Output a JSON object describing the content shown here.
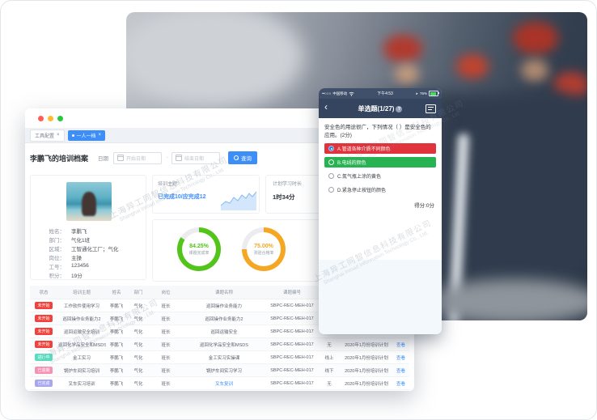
{
  "watermark": {
    "line1": "上海异工同智信息科技有限公司",
    "line2": "Shanghai Inroad Information Technology Co., Ltd."
  },
  "window": {
    "tabs": [
      {
        "label": "工具配置",
        "close": "×"
      },
      {
        "label": "一人一档",
        "close": "×"
      }
    ],
    "toolbar": {
      "title": "李鹏飞的培训档案",
      "date_label": "日期",
      "start_placeholder": "开始日期",
      "separator": "-",
      "end_placeholder": "结束日期",
      "search_label": "查询"
    },
    "profile": {
      "fields": [
        {
          "label": "姓名：",
          "value": "李鹏飞"
        },
        {
          "label": "部门：",
          "value": "气化1班"
        },
        {
          "label": "区域：",
          "value": "工智通化工厂；气化"
        },
        {
          "label": "岗位：",
          "value": "主操"
        },
        {
          "label": "工号：",
          "value": "123456"
        },
        {
          "label": "积分：",
          "value": "19分"
        }
      ]
    },
    "topic_card": {
      "label": "培训主题:",
      "value": "已完成10/应完成12"
    },
    "plan_card": {
      "label": "计划学习时长",
      "value": "1时34分"
    },
    "donuts": [
      {
        "value": "84.25%",
        "pct": 84.25,
        "label": "课题完成率",
        "color": "#52c41a"
      },
      {
        "value": "75.00%",
        "pct": 75,
        "label": "测验合格率",
        "color": "#f5a623"
      }
    ],
    "table": {
      "headers": [
        "状态",
        "培训主题",
        "姓名",
        "部门",
        "岗位",
        "课题名称",
        "课题编号",
        "",
        "",
        ""
      ],
      "rows": [
        {
          "status": "未开始",
          "status_type": "red",
          "topic": "工作软件使用学习",
          "name": "李鹏飞",
          "dept": "气化",
          "position": "班长",
          "course": "巡回操作业务能力",
          "course_is_link": false,
          "code": "SBPC-REC-MEH-017",
          "mode": "",
          "plan": "",
          "action": ""
        },
        {
          "status": "未开始",
          "status_type": "red",
          "topic": "巡回操作业务能力2",
          "name": "李鹏飞",
          "dept": "气化",
          "position": "班长",
          "course": "巡回操作业务能力2",
          "course_is_link": false,
          "code": "SBPC-REC-MEH-017",
          "mode": "",
          "plan": "",
          "action": ""
        },
        {
          "status": "未开始",
          "status_type": "red",
          "topic": "巡回运输安全培训",
          "name": "李鹏飞",
          "dept": "气化",
          "position": "班长",
          "course": "巡回运输安全",
          "course_is_link": false,
          "code": "SBPC-REC-MEH-017",
          "mode": "",
          "plan": "",
          "action": ""
        },
        {
          "status": "未开始",
          "status_type": "red",
          "topic": "巡回化学品安全和MSDS",
          "name": "李鹏飞",
          "dept": "气化",
          "position": "班长",
          "course": "巡回化学品安全和MSDS",
          "course_is_link": false,
          "code": "SBPC-REC-MEH-017",
          "mode": "无",
          "plan": "2020年1月份培训计划",
          "action": "查看"
        },
        {
          "status": "进行中",
          "status_type": "teal",
          "topic": "金工实习",
          "name": "李鹏飞",
          "dept": "气化",
          "position": "班长",
          "course": "金工实习实操课",
          "course_is_link": false,
          "code": "SBPC-REC-MEH-017",
          "mode": "线上",
          "plan": "2020年1月份培训计划",
          "action": "查看"
        },
        {
          "status": "已逾期",
          "status_type": "pink",
          "topic": "锅炉车间实习培训",
          "name": "李鹏飞",
          "dept": "气化",
          "position": "班长",
          "course": "锅炉车间实习学习",
          "course_is_link": false,
          "code": "SBPC-REC-MEH-017",
          "mode": "线下",
          "plan": "2020年1月份培训计划",
          "action": "查看"
        },
        {
          "status": "已完成",
          "status_type": "purple",
          "topic": "叉车实习培训",
          "name": "李鹏飞",
          "dept": "气化",
          "position": "班长",
          "course": "叉车复训",
          "course_is_link": true,
          "code": "SBPC-REC-MEH-017",
          "mode": "无",
          "plan": "2020年1月份培训计划",
          "action": "查看"
        }
      ]
    }
  },
  "phone": {
    "status": {
      "signal": "••○○○",
      "carrier": "中国移动",
      "time": "下午4:53",
      "location": "➤",
      "battery": "76%"
    },
    "nav": {
      "title": "单选题(1/27)",
      "help": "?"
    },
    "question": "安全色的用途很广，下列情况（ ）是安全色的应用。(2分)",
    "options": [
      {
        "text": "A.管道各种介质不同颜色",
        "style": "red",
        "radio": "selected"
      },
      {
        "text": "B.电线的颜色",
        "style": "green",
        "radio": "light"
      },
      {
        "text": "C.氮气瓶上涂的黄色",
        "style": "plain",
        "radio": "gray"
      },
      {
        "text": "D.紧急停止按钮的颜色",
        "style": "plain",
        "radio": "gray"
      }
    ],
    "score": "得分:0分"
  }
}
